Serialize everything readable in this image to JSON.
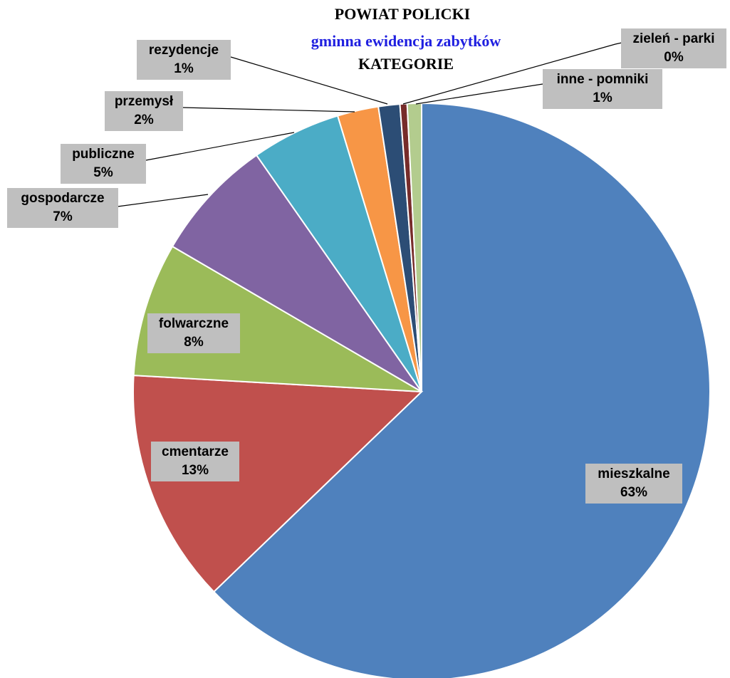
{
  "chart_data": {
    "type": "pie",
    "title": "POWIAT POLICKI",
    "subtitle": "gminna ewidencja zabytków",
    "caption": "KATEGORIE",
    "categories": [
      "mieszkalne",
      "cmentarze",
      "folwarczne",
      "gospodarcze",
      "publiczne",
      "przemysł",
      "rezydencje",
      "zieleń - parki",
      "inne - pomniki"
    ],
    "values": [
      62.8,
      13.1,
      7.5,
      6.9,
      5.0,
      2.3,
      1.2,
      0.4,
      0.8
    ],
    "value_labels": [
      "63%",
      "13%",
      "8%",
      "7%",
      "5%",
      "2%",
      "1%",
      "0%",
      "1%"
    ],
    "colors": [
      "#4f81bd",
      "#c0504d",
      "#9bbb59",
      "#8064a2",
      "#4bacc6",
      "#f79646",
      "#2c4d75",
      "#772c2a",
      "#b3cc8e"
    ]
  }
}
